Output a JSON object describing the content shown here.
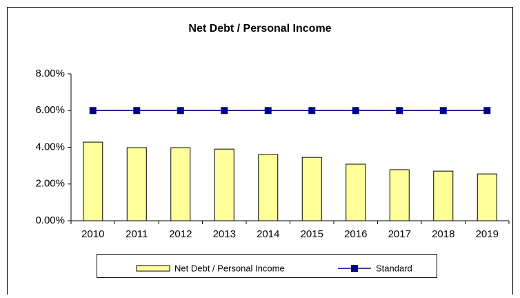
{
  "chart_data": {
    "type": "bar",
    "title": "Net Debt / Personal Income",
    "categories": [
      "2010",
      "2011",
      "2012",
      "2013",
      "2014",
      "2015",
      "2016",
      "2017",
      "2018",
      "2019"
    ],
    "series": [
      {
        "name": "Net Debt / Personal Income",
        "type": "bar",
        "color": "#ffff99",
        "values": [
          4.28,
          3.98,
          3.98,
          3.9,
          3.6,
          3.45,
          3.08,
          2.78,
          2.7,
          2.55
        ]
      },
      {
        "name": "Standard",
        "type": "line",
        "color": "#000080",
        "values": [
          6,
          6,
          6,
          6,
          6,
          6,
          6,
          6,
          6,
          6
        ]
      }
    ],
    "ylim": [
      0,
      8
    ],
    "yticks": [
      {
        "value": 0,
        "label": "0.00%"
      },
      {
        "value": 2,
        "label": "2.00%"
      },
      {
        "value": 4,
        "label": "4.00%"
      },
      {
        "value": 6,
        "label": "6.00%"
      },
      {
        "value": 8,
        "label": "8.00%"
      }
    ],
    "legend": "bottom"
  }
}
